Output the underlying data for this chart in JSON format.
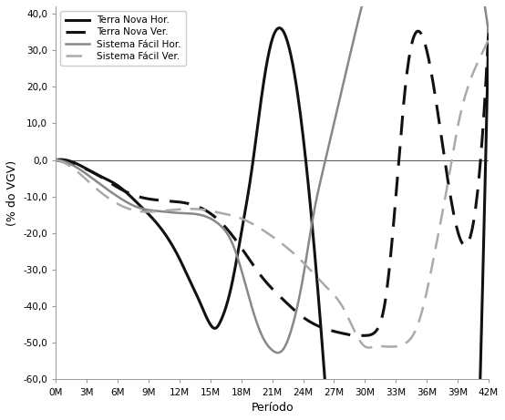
{
  "title": "",
  "xlabel": "Período",
  "ylabel": "(% do VGV)",
  "xlim": [
    0,
    42
  ],
  "ylim": [
    -60,
    42
  ],
  "yticks": [
    -60,
    -50,
    -40,
    -30,
    -20,
    -10,
    0,
    10,
    20,
    30,
    40
  ],
  "ytick_labels": [
    "-60,0",
    "-50,0",
    "-40,0",
    "-30,0",
    "-20,0",
    "-10,0",
    "0,0",
    "10,0",
    "20,0",
    "30,0",
    "40,0"
  ],
  "xtick_labels": [
    "0M",
    "3M",
    "6M",
    "9M",
    "12M",
    "15M",
    "18M",
    "21M",
    "24M",
    "27M",
    "30M",
    "33M",
    "36M",
    "39M",
    "42M"
  ],
  "xtick_values": [
    0,
    3,
    6,
    9,
    12,
    15,
    18,
    21,
    24,
    27,
    30,
    33,
    36,
    39,
    42
  ],
  "series": [
    {
      "label": "Terra Nova Hor.",
      "color": "#111111",
      "linestyle": "solid",
      "linewidth": 2.2,
      "knots_x": [
        0,
        2,
        4,
        6,
        8,
        10,
        12,
        13,
        14,
        15,
        15.5,
        16,
        17,
        18,
        19,
        20,
        21,
        22,
        42
      ],
      "knots_y": [
        0,
        -1,
        -4,
        -7,
        -12,
        -18,
        -27,
        -33,
        -39,
        -45,
        -46,
        -44,
        -35,
        -20,
        -3,
        18,
        33,
        35.5,
        35.5
      ]
    },
    {
      "label": "Terra Nova Ver.",
      "color": "#111111",
      "linestyle": "dashed",
      "linewidth": 2.2,
      "knots_x": [
        0,
        2,
        4,
        6,
        8,
        10,
        12,
        14,
        16,
        18,
        20,
        22,
        24,
        26,
        28,
        29,
        30,
        31,
        32,
        33,
        34,
        35,
        42
      ],
      "knots_y": [
        0,
        -1.5,
        -4,
        -7.5,
        -10,
        -11,
        -11.5,
        -13,
        -17,
        -24,
        -32,
        -38,
        -43,
        -46,
        -47.5,
        -48,
        -48,
        -47,
        -38,
        -10,
        22,
        35,
        35.5
      ]
    },
    {
      "label": "Sistema Fácil Hor.",
      "color": "#888888",
      "linestyle": "solid",
      "linewidth": 1.8,
      "knots_x": [
        0,
        2,
        4,
        6,
        8,
        10,
        12,
        14,
        15,
        16,
        17,
        18,
        19,
        20,
        21,
        22,
        23,
        24,
        25,
        26,
        27,
        42
      ],
      "knots_y": [
        0,
        -2,
        -6,
        -10,
        -13,
        -14,
        -14.5,
        -15,
        -16,
        -18,
        -22,
        -30,
        -40,
        -48,
        -52,
        -52,
        -45,
        -32,
        -15,
        -2,
        10,
        35
      ]
    },
    {
      "label": "Sistema Fácil Ver.",
      "color": "#aaaaaa",
      "linestyle": "dashed",
      "linewidth": 1.8,
      "knots_x": [
        0,
        2,
        4,
        6,
        8,
        10,
        12,
        14,
        16,
        18,
        20,
        22,
        24,
        26,
        28,
        30,
        31,
        32,
        33,
        34,
        35,
        36,
        37,
        38,
        39,
        40,
        41,
        42
      ],
      "knots_y": [
        0,
        -3,
        -8,
        -12,
        -14,
        -14,
        -13.5,
        -13.5,
        -14.5,
        -16,
        -19,
        -23,
        -28,
        -34,
        -41,
        -51,
        -51,
        -51,
        -51,
        -50,
        -46,
        -36,
        -22,
        -7,
        9,
        20,
        27,
        33
      ]
    }
  ],
  "background_color": "#ffffff",
  "zero_line_color": "#555555"
}
